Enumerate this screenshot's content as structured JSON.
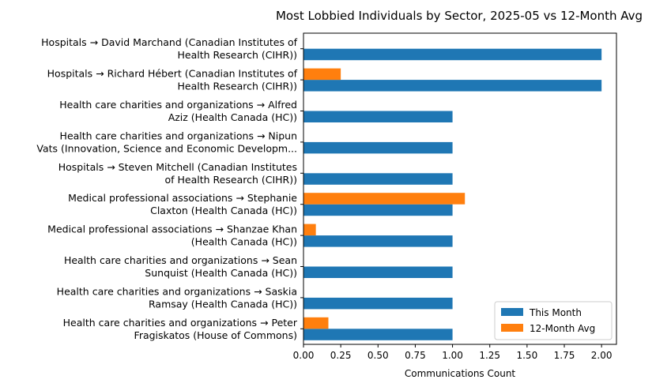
{
  "chart_data": {
    "type": "bar",
    "orientation": "horizontal",
    "title": "Most Lobbied Individuals by Sector, 2025-05 vs 12-Month Avg",
    "xlabel": "Communications Count",
    "ylabel": "",
    "xlim": [
      0,
      2.1
    ],
    "xticks": [
      "0.00",
      "0.25",
      "0.50",
      "0.75",
      "1.00",
      "1.25",
      "1.50",
      "1.75",
      "2.00"
    ],
    "legend_position": "lower-right",
    "categories": [
      [
        "Hospitals → David Marchand (Canadian Institutes of",
        "Health Research (CIHR))"
      ],
      [
        "Hospitals → Richard Hébert (Canadian Institutes of",
        "Health Research (CIHR))"
      ],
      [
        "Health care charities and organizations → Alfred",
        "Aziz (Health Canada (HC))"
      ],
      [
        "Health care charities and organizations → Nipun",
        "Vats (Innovation, Science and Economic Developm..."
      ],
      [
        "Hospitals → Steven Mitchell (Canadian Institutes",
        "of Health Research (CIHR))"
      ],
      [
        "Medical professional associations → Stephanie",
        "Claxton (Health Canada (HC))"
      ],
      [
        "Medical professional associations → Shanzae Khan",
        "(Health Canada (HC))"
      ],
      [
        "Health care charities and organizations → Sean",
        "Sunquist (Health Canada (HC))"
      ],
      [
        "Health care charities and organizations → Saskia",
        "Ramsay (Health Canada (HC))"
      ],
      [
        "Health care charities and organizations → Peter",
        "Fragiskatos (House of Commons)"
      ]
    ],
    "series": [
      {
        "name": "This Month",
        "color": "#1f77b4",
        "values": [
          2,
          2,
          1,
          1,
          1,
          1,
          1,
          1,
          1,
          1
        ]
      },
      {
        "name": "12-Month Avg",
        "color": "#ff7f0e",
        "values": [
          0,
          0.25,
          0,
          0,
          0,
          1.083,
          0.083,
          0,
          0,
          0.167
        ]
      }
    ]
  }
}
